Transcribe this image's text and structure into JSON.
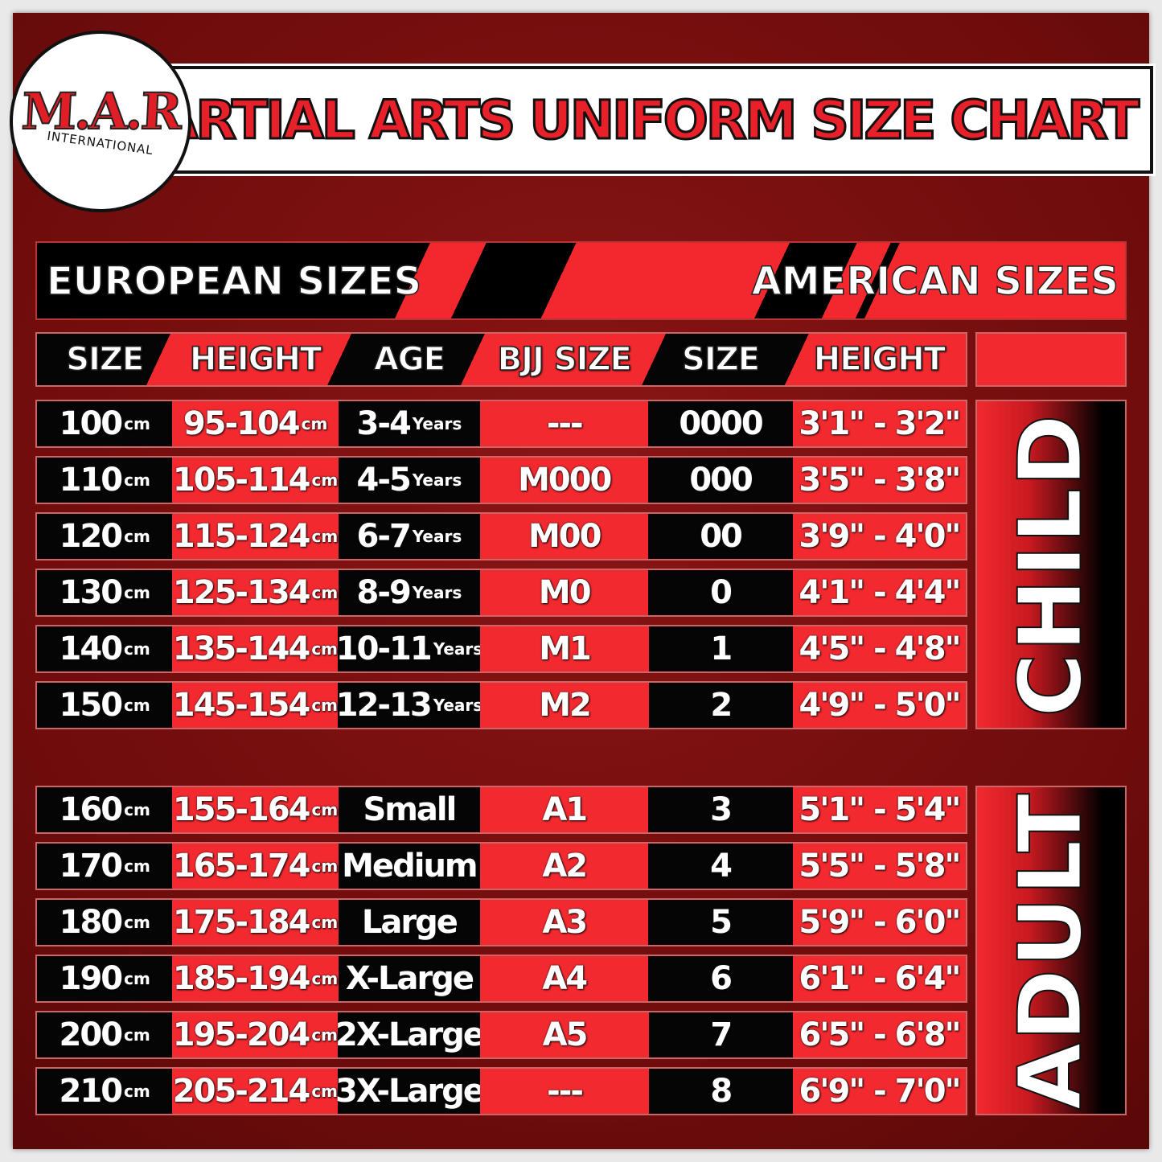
{
  "logo": {
    "brand": "M.A.R",
    "sub": "INTERNATIONAL"
  },
  "title": "MARTIAL ARTS UNIFORM SIZE CHART",
  "banner": {
    "left": "EUROPEAN SIZES",
    "right": "AMERICAN SIZES"
  },
  "headers": [
    "SIZE",
    "HEIGHT",
    "AGE",
    "BJJ SIZE",
    "SIZE",
    "HEIGHT"
  ],
  "colors": {
    "red": "#f2292f",
    "black": "#050505",
    "background": "#7a1010"
  },
  "groups": [
    {
      "label": "CHILD",
      "rows": [
        [
          "100",
          "cm",
          "95-104",
          "cm",
          "3-4",
          "Years",
          "---",
          "0000",
          "3'1\" - 3'2\""
        ],
        [
          "110",
          "cm",
          "105-114",
          "cm",
          "4-5",
          "Years",
          "M000",
          "000",
          "3'5\" - 3'8\""
        ],
        [
          "120",
          "cm",
          "115-124",
          "cm",
          "6-7",
          "Years",
          "M00",
          "00",
          "3'9\" - 4'0\""
        ],
        [
          "130",
          "cm",
          "125-134",
          "cm",
          "8-9",
          "Years",
          "M0",
          "0",
          "4'1\" - 4'4\""
        ],
        [
          "140",
          "cm",
          "135-144",
          "cm",
          "10-11",
          "Years",
          "M1",
          "1",
          "4'5\" - 4'8\""
        ],
        [
          "150",
          "cm",
          "145-154",
          "cm",
          "12-13",
          "Years",
          "M2",
          "2",
          "4'9\" - 5'0\""
        ]
      ]
    },
    {
      "label": "ADULT",
      "rows": [
        [
          "160",
          "cm",
          "155-164",
          "cm",
          "Small",
          "",
          "A1",
          "3",
          "5'1\" - 5'4\""
        ],
        [
          "170",
          "cm",
          "165-174",
          "cm",
          "Medium",
          "",
          "A2",
          "4",
          "5'5\" - 5'8\""
        ],
        [
          "180",
          "cm",
          "175-184",
          "cm",
          "Large",
          "",
          "A3",
          "5",
          "5'9\" - 6'0\""
        ],
        [
          "190",
          "cm",
          "185-194",
          "cm",
          "X-Large",
          "",
          "A4",
          "6",
          "6'1\" - 6'4\""
        ],
        [
          "200",
          "cm",
          "195-204",
          "cm",
          "2X-Large",
          "",
          "A5",
          "7",
          "6'5\" - 6'8\""
        ],
        [
          "210",
          "cm",
          "205-214",
          "cm",
          "3X-Large",
          "",
          "---",
          "8",
          "6'9\" - 7'0\""
        ]
      ]
    }
  ]
}
